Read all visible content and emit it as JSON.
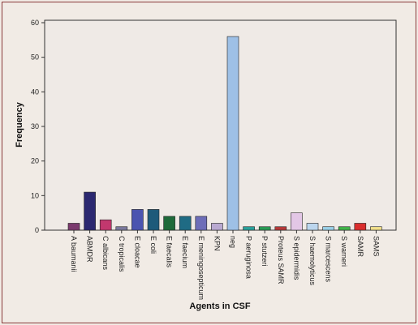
{
  "chart_data": {
    "type": "bar",
    "title": "",
    "xlabel": "Agents in CSF",
    "ylabel": "Frequency",
    "ylim": [
      0,
      60
    ],
    "yticks": [
      0,
      10,
      20,
      30,
      40,
      50,
      60
    ],
    "grid": false,
    "categories": [
      "A baumanii",
      "ABMDR",
      "C albicans",
      "C tropicalis",
      "E cloacae",
      "E coli",
      "E faecalis",
      "E faecium",
      "E meningosepticum",
      "KPN",
      "neg",
      "P aeruginosa",
      "P stutzeri",
      "Proteus SAMR",
      "S epidermidis",
      "S haemolyticus",
      "S marcescens",
      "S warneri",
      "SAMR",
      "SAMS"
    ],
    "values": [
      2,
      11,
      3,
      1,
      6,
      6,
      4,
      4,
      4,
      2,
      56,
      1,
      1,
      1,
      5,
      2,
      1,
      1,
      2,
      1
    ],
    "colors": [
      "#7b3a6e",
      "#2b2870",
      "#c2386e",
      "#7c7a9e",
      "#4b54b0",
      "#1e5a7a",
      "#1e6a3a",
      "#1f6b84",
      "#6d6db8",
      "#b9a9d1",
      "#9ec0e6",
      "#2aa19b",
      "#2a9a55",
      "#b53a3a",
      "#e3c7e6",
      "#bcd6ee",
      "#9bd1e8",
      "#41b34a",
      "#d92e2e",
      "#f2e08c"
    ]
  }
}
